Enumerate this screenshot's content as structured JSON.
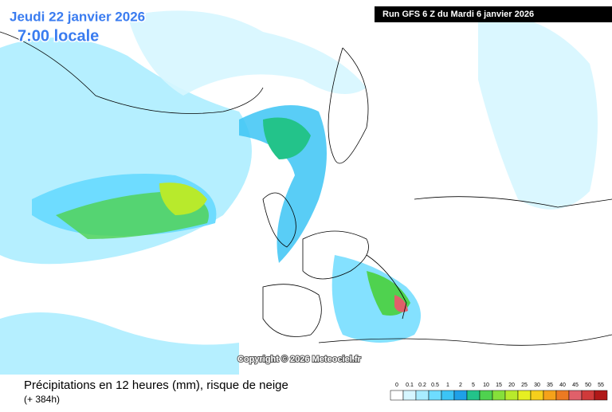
{
  "header": {
    "date": "Jeudi 22 janvier 2026",
    "time": "7:00 locale",
    "run": "Run GFS 6 Z du Mardi 6 janvier 2026"
  },
  "copyright": "Copyright © 2026 Meteociel.fr",
  "caption": {
    "title": "Précipitations en 12 heures (mm), risque de neige",
    "lead": "(+ 384h)"
  },
  "legend": {
    "labels": [
      "0",
      "0.1",
      "0.2",
      "0.5",
      "1",
      "2",
      "5",
      "10",
      "15",
      "20",
      "25",
      "30",
      "35",
      "40",
      "45",
      "50",
      "55"
    ],
    "colors": [
      "#ffffff",
      "#d6f6ff",
      "#a8ecff",
      "#6edcff",
      "#3cc4f5",
      "#1fa0e8",
      "#23c38a",
      "#4fd24f",
      "#86e03a",
      "#b8ea2c",
      "#e6ef22",
      "#f5cf1c",
      "#f5a21a",
      "#ec7a22",
      "#e0606a",
      "#d03a3a",
      "#b01818"
    ]
  }
}
